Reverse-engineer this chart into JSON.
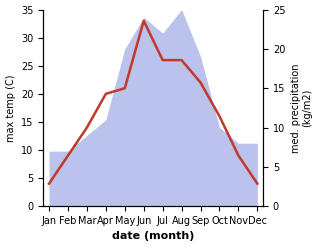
{
  "months": [
    "Jan",
    "Feb",
    "Mar",
    "Apr",
    "May",
    "Jun",
    "Jul",
    "Aug",
    "Sep",
    "Oct",
    "Nov",
    "Dec"
  ],
  "temp": [
    4,
    9,
    14,
    20,
    21,
    33,
    26,
    26,
    22,
    16,
    9,
    4
  ],
  "precip": [
    7,
    7,
    9,
    11,
    20,
    24,
    22,
    25,
    19,
    10,
    8,
    8
  ],
  "temp_color": "#c0392b",
  "precip_color": "#b0b8e8",
  "ylabel_left": "max temp (C)",
  "ylabel_right": "med. precipitation\n(kg/m2)",
  "xlabel": "date (month)",
  "ylim_left": [
    0,
    35
  ],
  "ylim_right": [
    0,
    25
  ],
  "yticks_left": [
    0,
    5,
    10,
    15,
    20,
    25,
    30,
    35
  ],
  "yticks_right": [
    0,
    5,
    10,
    15,
    20,
    25
  ],
  "background_color": "#ffffff",
  "temp_linewidth": 1.8,
  "label_fontsize": 7,
  "xlabel_fontsize": 8
}
